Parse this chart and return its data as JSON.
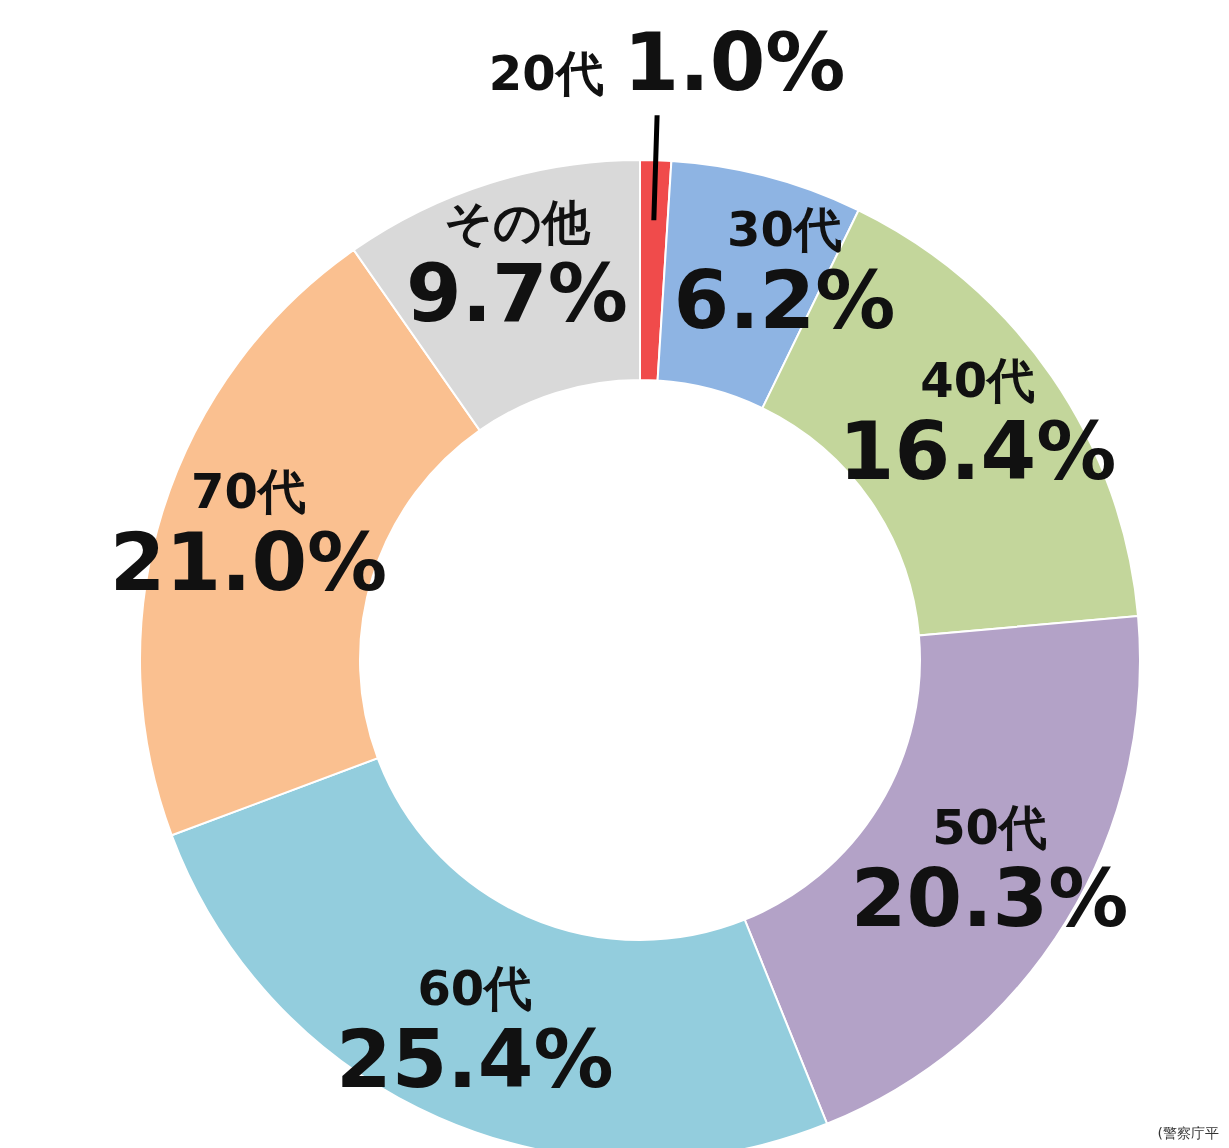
{
  "chart_data": {
    "type": "donut",
    "categories": [
      "20代",
      "30代",
      "40代",
      "50代",
      "60代",
      "70代",
      "その他"
    ],
    "values": [
      1.0,
      6.2,
      16.4,
      20.3,
      25.4,
      21.0,
      9.7
    ],
    "colors": [
      "#f04b4b",
      "#8eb4e3",
      "#c3d69b",
      "#b3a2c7",
      "#93cddd",
      "#fac090",
      "#d9d9d9"
    ],
    "value_labels": [
      "1.0%",
      "6.2%",
      "16.4%",
      "20.3%",
      "25.4%",
      "21.0%",
      "9.7%"
    ],
    "annotations": [
      "(警察庁平"
    ]
  }
}
